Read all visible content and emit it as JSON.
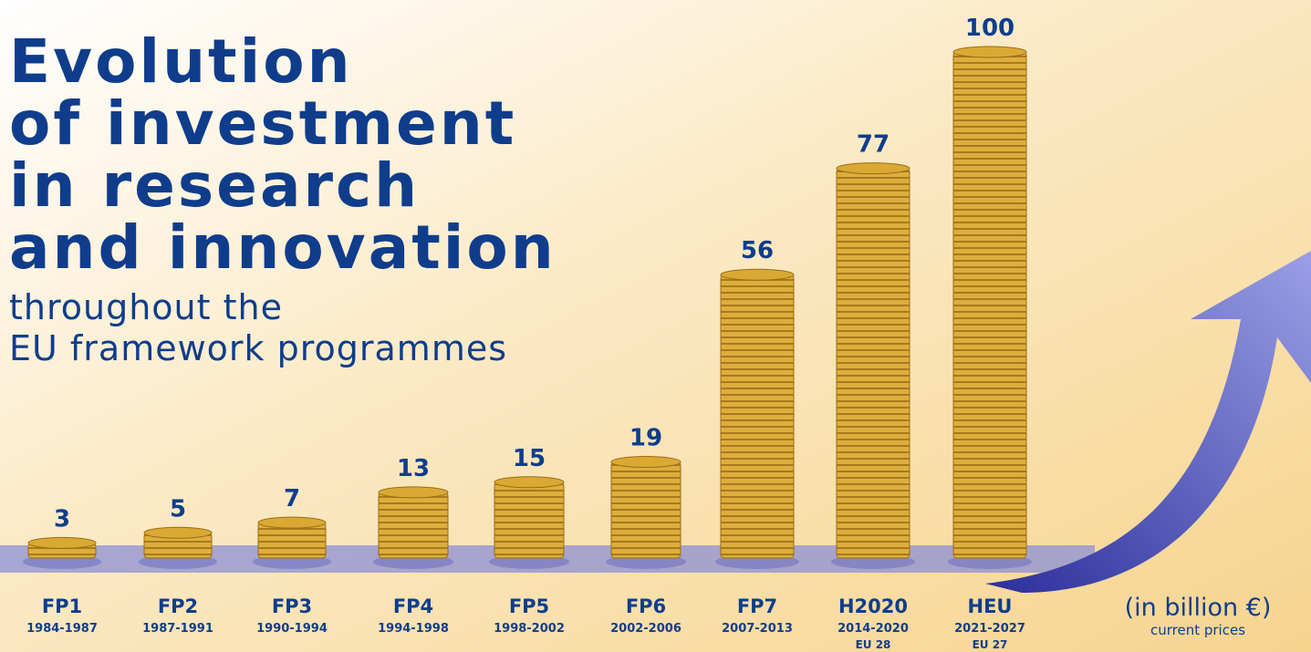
{
  "chart_data": {
    "type": "coin-stack",
    "title": [
      "Evolution",
      "of investment",
      "in research",
      "and innovation"
    ],
    "subtitle": [
      "throughout the",
      "EU framework programmes"
    ],
    "categories": [
      "FP1",
      "FP2",
      "FP3",
      "FP4",
      "FP5",
      "FP6",
      "FP7",
      "H2020",
      "HEU"
    ],
    "periods": [
      "1984-1987",
      "1987-1991",
      "1990-1994",
      "1994-1998",
      "1998-2002",
      "2002-2006",
      "2007-2013",
      "2014-2020",
      "2021-2027"
    ],
    "notes": [
      null,
      null,
      null,
      null,
      null,
      null,
      null,
      "EU 28",
      "EU 27"
    ],
    "values": [
      3,
      5,
      7,
      13,
      15,
      19,
      56,
      77,
      100
    ],
    "unit": "(in billion €)",
    "unit_note": "current prices",
    "color": "#d9a933"
  }
}
